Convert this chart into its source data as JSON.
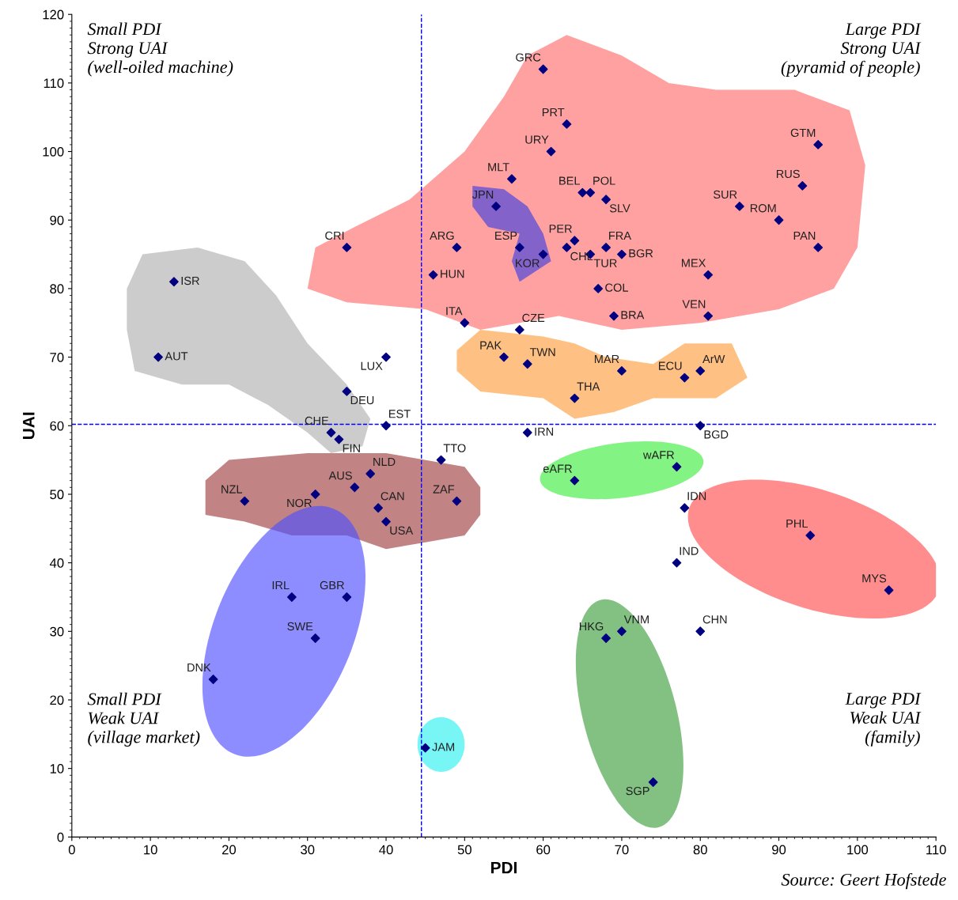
{
  "chart_data": {
    "type": "scatter",
    "xlabel": "PDI",
    "ylabel": "UAI",
    "xlim": [
      0,
      110
    ],
    "ylim": [
      0,
      120
    ],
    "xticks": [
      0,
      10,
      20,
      30,
      40,
      50,
      60,
      70,
      80,
      90,
      100,
      110
    ],
    "yticks": [
      0,
      10,
      20,
      30,
      40,
      50,
      60,
      70,
      80,
      90,
      100,
      110,
      120
    ],
    "grid": false,
    "legend": false,
    "marker": "diamond",
    "series": [
      {
        "color": "#000080",
        "x": [
          60,
          63,
          61,
          95,
          56,
          93,
          65,
          66,
          68,
          54,
          85,
          90,
          64,
          35,
          49,
          57,
          63,
          68,
          66,
          70,
          60,
          95,
          46,
          81,
          67,
          50,
          69,
          81,
          57,
          40,
          13,
          11,
          55,
          58,
          70,
          78,
          80,
          64,
          35,
          40,
          33,
          34,
          80,
          58,
          47,
          38,
          77,
          64,
          36,
          31,
          22,
          49,
          39,
          78,
          40,
          94,
          77,
          104,
          28,
          35,
          31,
          70,
          68,
          80,
          18,
          45,
          74
        ],
        "values": [
          112,
          104,
          100,
          101,
          96,
          95,
          94,
          94,
          93,
          92,
          92,
          90,
          87,
          86,
          86,
          86,
          86,
          86,
          85,
          85,
          85,
          86,
          82,
          82,
          80,
          75,
          76,
          76,
          74,
          70,
          81,
          70,
          70,
          69,
          68,
          67,
          68,
          64,
          65,
          60,
          59,
          58,
          60,
          59,
          55,
          53,
          54,
          52,
          51,
          50,
          49,
          49,
          48,
          48,
          46,
          44,
          40,
          36,
          35,
          35,
          29,
          30,
          29,
          30,
          23,
          13,
          8
        ]
      }
    ],
    "ref_lines": [
      {
        "axis": "x",
        "value": 44.5,
        "color": "#0000ff",
        "line_style": "dashed"
      },
      {
        "axis": "y",
        "value": 60.2,
        "color": "#0000ff",
        "line_style": "dashed"
      }
    ],
    "annotations": [
      "Small PDI\nStrong UAI\n(well-oiled machine)",
      "Large PDI\nStrong UAI\n(pyramid of people)",
      "Small PDI\nWeak UAI\n(village market)",
      "Large PDI\nWeak UAI\n(family)",
      "Source: Geert Hofstede",
      {
        "text": "GRC",
        "x": 60,
        "y": 112
      },
      {
        "text": "PRT",
        "x": 63,
        "y": 104
      },
      {
        "text": "URY",
        "x": 61,
        "y": 100
      },
      {
        "text": "GTM",
        "x": 95,
        "y": 101
      },
      {
        "text": "MLT",
        "x": 56,
        "y": 96
      },
      {
        "text": "RUS",
        "x": 93,
        "y": 95
      },
      {
        "text": "BEL",
        "x": 65,
        "y": 94
      },
      {
        "text": "POL",
        "x": 66,
        "y": 94
      },
      {
        "text": "SLV",
        "x": 68,
        "y": 93
      },
      {
        "text": "JPN",
        "x": 54,
        "y": 92
      },
      {
        "text": "SUR",
        "x": 85,
        "y": 92
      },
      {
        "text": "ROM",
        "x": 90,
        "y": 90
      },
      {
        "text": "PER",
        "x": 64,
        "y": 87
      },
      {
        "text": "CRI",
        "x": 35,
        "y": 86
      },
      {
        "text": "ARG",
        "x": 49,
        "y": 86
      },
      {
        "text": "ESP",
        "x": 57,
        "y": 86
      },
      {
        "text": "CHL",
        "x": 63,
        "y": 86
      },
      {
        "text": "FRA",
        "x": 68,
        "y": 86
      },
      {
        "text": "TUR",
        "x": 66,
        "y": 85
      },
      {
        "text": "BGR",
        "x": 70,
        "y": 85
      },
      {
        "text": "KOR",
        "x": 60,
        "y": 85
      },
      {
        "text": "PAN",
        "x": 95,
        "y": 86
      },
      {
        "text": "HUN",
        "x": 46,
        "y": 82
      },
      {
        "text": "MEX",
        "x": 81,
        "y": 82
      },
      {
        "text": "COL",
        "x": 67,
        "y": 80
      },
      {
        "text": "ITA",
        "x": 50,
        "y": 75
      },
      {
        "text": "BRA",
        "x": 69,
        "y": 76
      },
      {
        "text": "VEN",
        "x": 81,
        "y": 76
      },
      {
        "text": "CZE",
        "x": 57,
        "y": 74
      },
      {
        "text": "LUX",
        "x": 40,
        "y": 70
      },
      {
        "text": "ISR",
        "x": 13,
        "y": 81
      },
      {
        "text": "AUT",
        "x": 11,
        "y": 70
      },
      {
        "text": "PAK",
        "x": 55,
        "y": 70
      },
      {
        "text": "TWN",
        "x": 58,
        "y": 69
      },
      {
        "text": "MAR",
        "x": 70,
        "y": 68
      },
      {
        "text": "ECU",
        "x": 78,
        "y": 67
      },
      {
        "text": "ArW",
        "x": 80,
        "y": 68
      },
      {
        "text": "THA",
        "x": 64,
        "y": 64
      },
      {
        "text": "DEU",
        "x": 35,
        "y": 65
      },
      {
        "text": "EST",
        "x": 40,
        "y": 60
      },
      {
        "text": "CHE",
        "x": 33,
        "y": 59
      },
      {
        "text": "FIN",
        "x": 34,
        "y": 58
      },
      {
        "text": "BGD",
        "x": 80,
        "y": 60
      },
      {
        "text": "IRN",
        "x": 58,
        "y": 59
      },
      {
        "text": "TTO",
        "x": 47,
        "y": 55
      },
      {
        "text": "NLD",
        "x": 38,
        "y": 53
      },
      {
        "text": "wAFR",
        "x": 77,
        "y": 54
      },
      {
        "text": "eAFR",
        "x": 64,
        "y": 52
      },
      {
        "text": "AUS",
        "x": 36,
        "y": 51
      },
      {
        "text": "NOR",
        "x": 31,
        "y": 50
      },
      {
        "text": "NZL",
        "x": 22,
        "y": 49
      },
      {
        "text": "ZAF",
        "x": 49,
        "y": 49
      },
      {
        "text": "CAN",
        "x": 39,
        "y": 48
      },
      {
        "text": "IDN",
        "x": 78,
        "y": 48
      },
      {
        "text": "USA",
        "x": 40,
        "y": 46
      },
      {
        "text": "PHL",
        "x": 94,
        "y": 44
      },
      {
        "text": "IND",
        "x": 77,
        "y": 40
      },
      {
        "text": "MYS",
        "x": 104,
        "y": 36
      },
      {
        "text": "IRL",
        "x": 28,
        "y": 35
      },
      {
        "text": "GBR",
        "x": 35,
        "y": 35
      },
      {
        "text": "SWE",
        "x": 31,
        "y": 29
      },
      {
        "text": "VNM",
        "x": 70,
        "y": 30
      },
      {
        "text": "HKG",
        "x": 68,
        "y": 29
      },
      {
        "text": "CHN",
        "x": 80,
        "y": 30
      },
      {
        "text": "DNK",
        "x": 18,
        "y": 23
      },
      {
        "text": "JAM",
        "x": 45,
        "y": 13
      },
      {
        "text": "SGP",
        "x": 74,
        "y": 8
      }
    ]
  }
}
